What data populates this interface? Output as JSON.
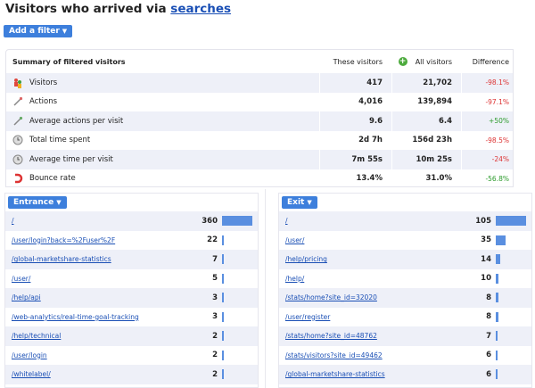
{
  "title": {
    "prefix": "Visitors who arrived via",
    "link": "searches"
  },
  "add_filter": {
    "label": "Add a filter",
    "arrow": "▼"
  },
  "summary": {
    "heading": "Summary of filtered visitors",
    "col_these": "These visitors",
    "col_all": "All visitors",
    "col_diff": "Difference",
    "rows": [
      {
        "label": "Visitors",
        "icon": "visitors-icon",
        "these": "417",
        "all": "21,702",
        "diff": "-98.1%",
        "trend": "neg"
      },
      {
        "label": "Actions",
        "icon": "actions-icon",
        "these": "4,016",
        "all": "139,894",
        "diff": "-97.1%",
        "trend": "neg"
      },
      {
        "label": "Average actions per visit",
        "icon": "average-actions-icon",
        "these": "9.6",
        "all": "6.4",
        "diff": "+50%",
        "trend": "pos"
      },
      {
        "label": "Total time spent",
        "icon": "clock-icon",
        "these": "2d 7h",
        "all": "156d 23h",
        "diff": "-98.5%",
        "trend": "neg"
      },
      {
        "label": "Average time per visit",
        "icon": "clock-icon",
        "these": "7m 55s",
        "all": "10m 25s",
        "diff": "-24%",
        "trend": "neg"
      },
      {
        "label": "Bounce rate",
        "icon": "bounce-magnet-icon",
        "these": "13.4%",
        "all": "31.0%",
        "diff": "-56.8%",
        "trend": "pos"
      }
    ]
  },
  "entrance": {
    "label": "Entrance",
    "arrow": "▼",
    "max": 360,
    "rows": [
      {
        "path": "/",
        "count": 360
      },
      {
        "path": "/user/login?back=%2Fuser%2F",
        "count": 22
      },
      {
        "path": "/global-marketshare-statistics",
        "count": 7
      },
      {
        "path": "/user/",
        "count": 5
      },
      {
        "path": "/help/api",
        "count": 3
      },
      {
        "path": "/web-analytics/real-time-goal-tracking",
        "count": 3
      },
      {
        "path": "/help/technical",
        "count": 2
      },
      {
        "path": "/user/login",
        "count": 2
      },
      {
        "path": "/whitelabel/",
        "count": 2
      }
    ]
  },
  "exit": {
    "label": "Exit",
    "arrow": "▼",
    "max": 105,
    "rows": [
      {
        "path": "/",
        "count": 105
      },
      {
        "path": "/user/",
        "count": 35
      },
      {
        "path": "/help/pricing",
        "count": 14
      },
      {
        "path": "/help/",
        "count": 10
      },
      {
        "path": "/stats/home?site_id=32020",
        "count": 8
      },
      {
        "path": "/user/register",
        "count": 8
      },
      {
        "path": "/stats/home?site_id=48762",
        "count": 7
      },
      {
        "path": "/stats/visitors?site_id=49462",
        "count": 6
      },
      {
        "path": "/global-marketshare-statistics",
        "count": 6
      }
    ]
  },
  "colors": {
    "accent": "#3d7fdc",
    "link": "#1a4fb5",
    "negative": "#d33333",
    "positive": "#2a9a2a",
    "bar": "#5a8fe0",
    "row_shade": "#eef0f8"
  }
}
